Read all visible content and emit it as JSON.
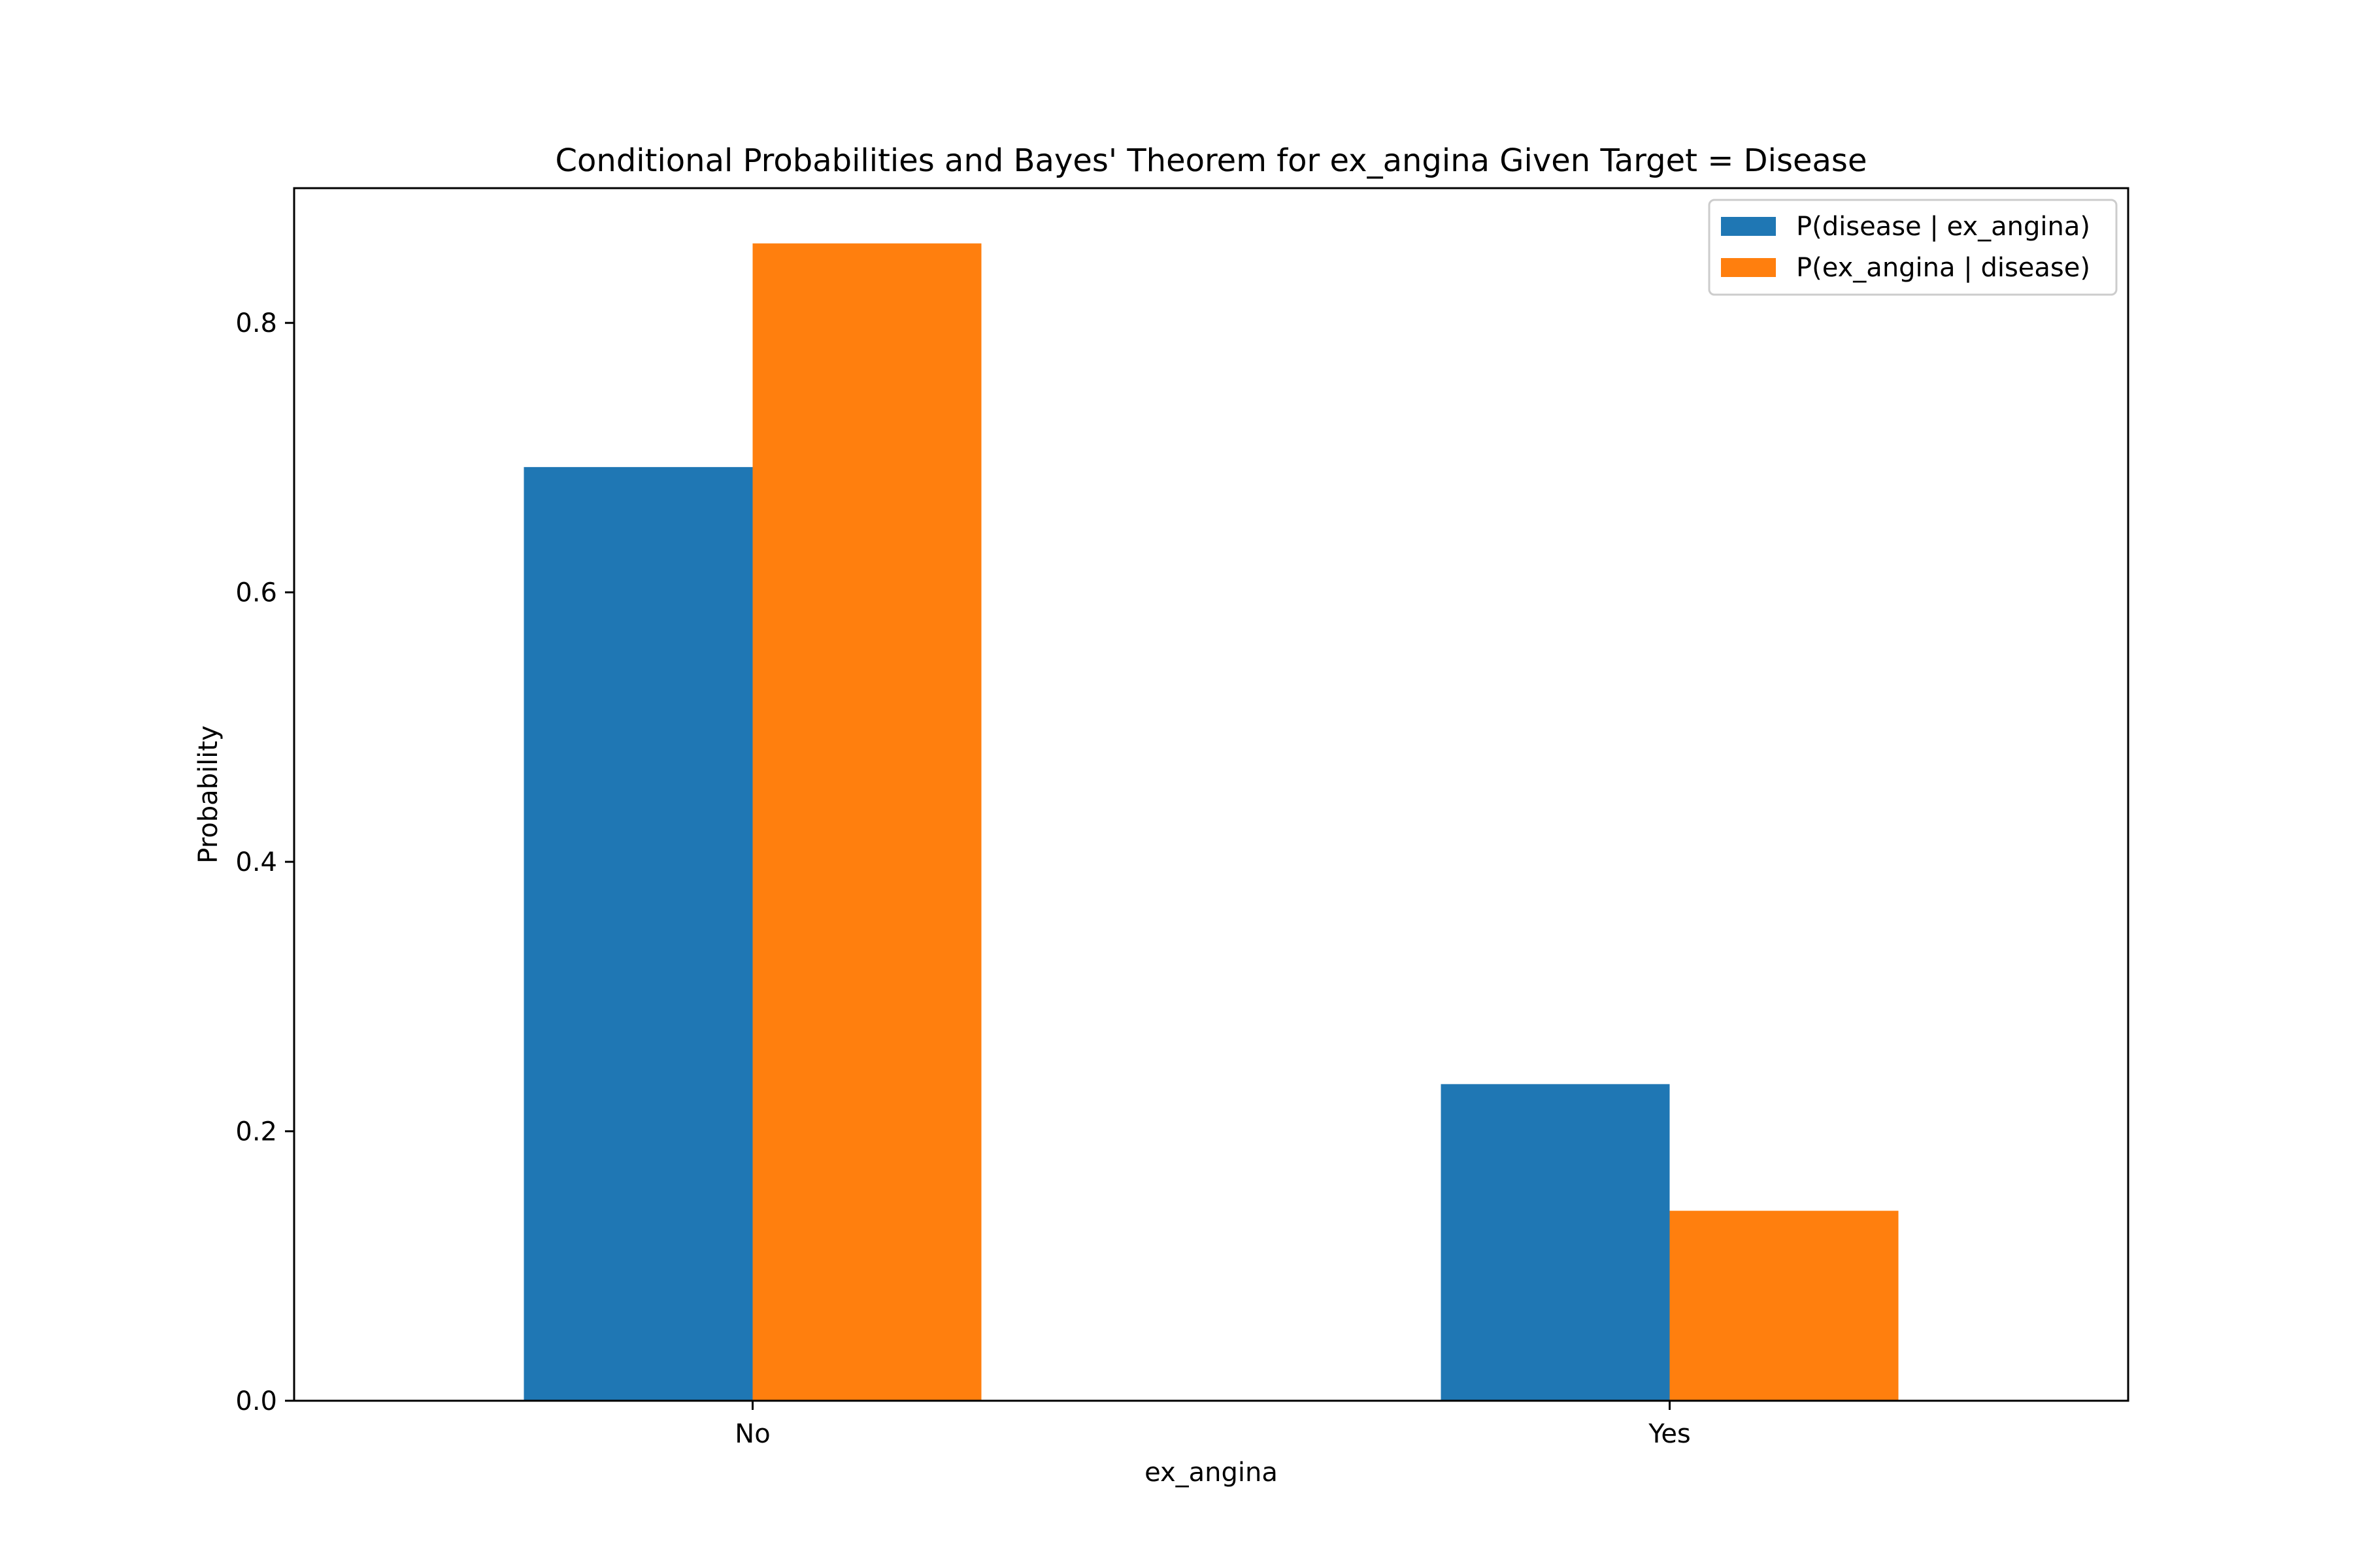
{
  "chart_data": {
    "type": "bar",
    "title": "Conditional Probabilities and Bayes' Theorem for ex_angina Given Target = Disease",
    "xlabel": "ex_angina",
    "ylabel": "Probability",
    "categories": [
      "No",
      "Yes"
    ],
    "series": [
      {
        "name": "P(disease | ex_angina)",
        "values": [
          0.693,
          0.235
        ],
        "color": "#1f77b4"
      },
      {
        "name": "P(ex_angina | disease)",
        "values": [
          0.859,
          0.141
        ],
        "color": "#ff7f0e"
      }
    ],
    "ylim": [
      0,
      0.9
    ],
    "yticks": [
      0.0,
      0.2,
      0.4,
      0.6,
      0.8
    ],
    "ytick_labels": [
      "0.0",
      "0.2",
      "0.4",
      "0.6",
      "0.8"
    ],
    "grid": false,
    "legend_position": "top-right"
  }
}
